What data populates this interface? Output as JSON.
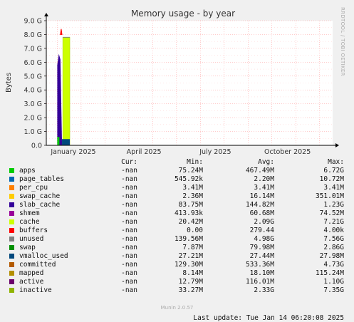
{
  "chart_data": {
    "type": "area",
    "title": "Memory usage - by year",
    "ylabel": "Bytes",
    "xlabel": "",
    "ylim": [
      0,
      9.0
    ],
    "yunit": "G",
    "yticks": [
      "0.0",
      "1.0 G",
      "2.0 G",
      "3.0 G",
      "4.0 G",
      "5.0 G",
      "6.0 G",
      "7.0 G",
      "8.0 G",
      "9.0 G"
    ],
    "ytick_values": [
      0,
      1,
      2,
      3,
      4,
      5,
      6,
      7,
      8,
      9
    ],
    "xticks": [
      "January 2025",
      "April 2025",
      "July 2025",
      "October 2025"
    ],
    "xtick_days": [
      34.5,
      124.5,
      215.5,
      307.5
    ],
    "xrange_days": [
      0,
      365
    ],
    "grid": true,
    "visible_segments": [
      {
        "series": "cache",
        "x_days": [
          14,
          16,
          18,
          20
        ],
        "y_G": [
          5.8,
          6.6,
          6.2,
          0.2
        ]
      },
      {
        "series": "unused",
        "x_days": [
          21,
          30
        ],
        "y_G": [
          7.8,
          7.8
        ]
      },
      {
        "series": "swap",
        "x_days": [
          18,
          19,
          20
        ],
        "y_G": [
          8.0,
          8.4,
          8.0
        ]
      },
      {
        "series": "active",
        "x_days": [
          14,
          16
        ],
        "y_G": [
          0.6,
          0.6
        ]
      }
    ]
  },
  "legend": {
    "headers": {
      "cur": "Cur:",
      "min": "Min:",
      "avg": "Avg:",
      "max": "Max:"
    },
    "rows": [
      {
        "name": "apps",
        "color": "#00cc00",
        "cur": "-nan",
        "min": "75.24M",
        "avg": "467.49M",
        "max": "6.72G"
      },
      {
        "name": "page_tables",
        "color": "#0066b3",
        "cur": "-nan",
        "min": "545.92k",
        "avg": "2.20M",
        "max": "10.72M"
      },
      {
        "name": "per_cpu",
        "color": "#ff8000",
        "cur": "-nan",
        "min": "3.41M",
        "avg": "3.41M",
        "max": "3.41M"
      },
      {
        "name": "swap_cache",
        "color": "#ffcc00",
        "cur": "-nan",
        "min": "2.36M",
        "avg": "16.14M",
        "max": "351.01M"
      },
      {
        "name": "slab_cache",
        "color": "#330099",
        "cur": "-nan",
        "min": "83.75M",
        "avg": "144.82M",
        "max": "1.23G"
      },
      {
        "name": "shmem",
        "color": "#990099",
        "cur": "-nan",
        "min": "413.93k",
        "avg": "60.68M",
        "max": "74.52M"
      },
      {
        "name": "cache",
        "color": "#ccff00",
        "cur": "-nan",
        "min": "20.42M",
        "avg": "2.09G",
        "max": "7.21G"
      },
      {
        "name": "buffers",
        "color": "#ff0000",
        "cur": "-nan",
        "min": "0.00",
        "avg": "279.44",
        "max": "4.00k"
      },
      {
        "name": "unused",
        "color": "#808080",
        "cur": "-nan",
        "min": "139.56M",
        "avg": "4.98G",
        "max": "7.56G"
      },
      {
        "name": "swap",
        "color": "#008f00",
        "cur": "-nan",
        "min": "7.87M",
        "avg": "79.98M",
        "max": "2.86G"
      },
      {
        "name": "vmalloc_used",
        "color": "#00487d",
        "cur": "-nan",
        "min": "27.21M",
        "avg": "27.44M",
        "max": "27.98M"
      },
      {
        "name": "committed",
        "color": "#b35a00",
        "cur": "-nan",
        "min": "129.30M",
        "avg": "533.36M",
        "max": "4.73G"
      },
      {
        "name": "mapped",
        "color": "#b38f00",
        "cur": "-nan",
        "min": "8.14M",
        "avg": "18.10M",
        "max": "115.24M"
      },
      {
        "name": "active",
        "color": "#6b006b",
        "cur": "-nan",
        "min": "12.79M",
        "avg": "116.01M",
        "max": "1.10G"
      },
      {
        "name": "inactive",
        "color": "#8fb300",
        "cur": "-nan",
        "min": "33.27M",
        "avg": "2.33G",
        "max": "7.35G"
      }
    ]
  },
  "last_update": "Last update: Tue Jan 14 06:20:08 2025",
  "footer": "Munin 2.0.57",
  "side_label": "RRDTOOL / TOBI OETIKER",
  "colors": {
    "background": "#f0f0f0",
    "plot_bg": "#ffffff",
    "grid": "#ff9999",
    "axis": "#000000"
  }
}
